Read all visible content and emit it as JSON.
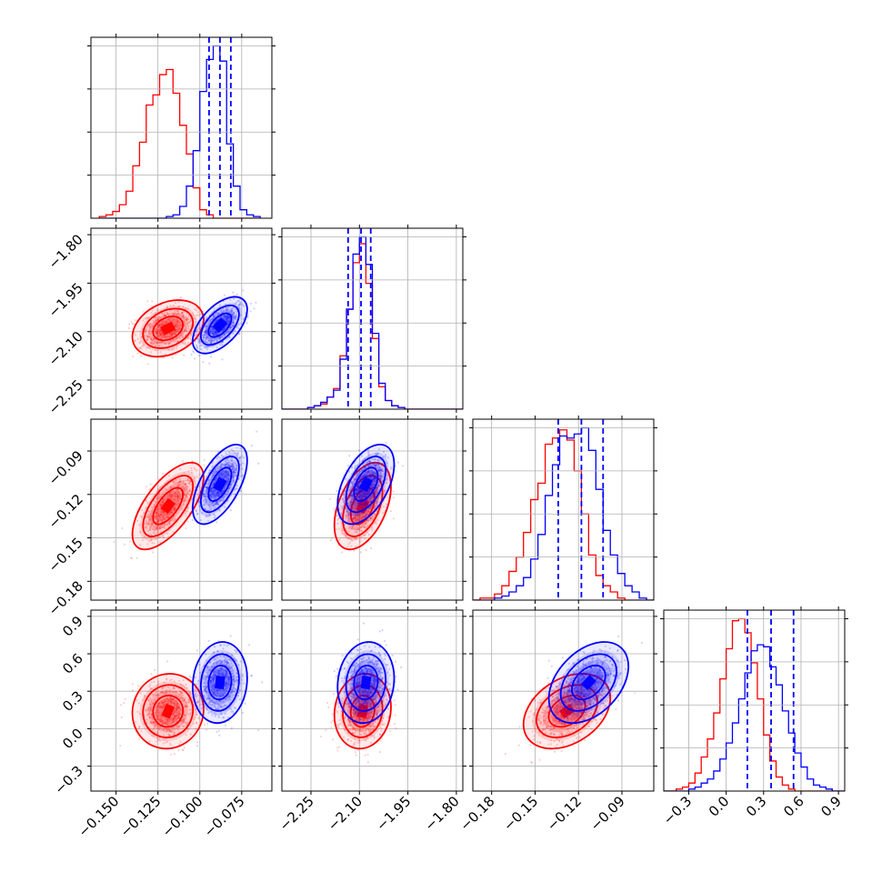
{
  "chart_data": {
    "type": "corner",
    "colors": {
      "series_a": "#ff0000",
      "series_b": "#0000ff",
      "quantile_lines": "#0000ff",
      "grid": "#b0b0b0"
    },
    "grid": true,
    "parameters": [
      {
        "range": [
          -0.165,
          -0.057
        ],
        "ticks": [
          -0.15,
          -0.125,
          -0.1,
          -0.075
        ],
        "tick_labels": [
          "−0.150",
          "−0.125",
          "−0.100",
          "−0.075"
        ]
      },
      {
        "range": [
          -2.34,
          -1.78
        ],
        "ticks": [
          -2.25,
          -2.1,
          -1.95,
          -1.8
        ],
        "tick_labels": [
          "−2.25",
          "−2.10",
          "−1.95",
          "−1.80"
        ]
      },
      {
        "range": [
          -0.193,
          -0.068
        ],
        "ticks": [
          -0.18,
          -0.15,
          -0.12,
          -0.09
        ],
        "tick_labels": [
          "−0.18",
          "−0.15",
          "−0.12",
          "−0.09"
        ]
      },
      {
        "range": [
          -0.5,
          0.95
        ],
        "ticks": [
          -0.3,
          0.0,
          0.3,
          0.6,
          0.9
        ],
        "tick_labels": [
          "−0.3",
          "0.0",
          "0.3",
          "0.6",
          "0.9"
        ]
      }
    ],
    "series": [
      {
        "means": [
          -0.119,
          -2.09,
          -0.128,
          0.14
        ],
        "stds": [
          0.0085,
          0.035,
          0.012,
          0.12
        ],
        "correlations": {
          "0-1": 0.3,
          "0-2": 0.65,
          "0-3": 0.05,
          "1-2": 0.45,
          "1-3": 0.1,
          "2-3": 0.35
        }
      },
      {
        "means": [
          -0.088,
          -2.08,
          -0.113,
          0.37
        ],
        "stds": [
          0.0065,
          0.035,
          0.011,
          0.13
        ],
        "correlations": {
          "0-1": 0.55,
          "0-2": 0.6,
          "0-3": 0.1,
          "1-2": 0.5,
          "1-3": 0.1,
          "2-3": 0.4
        }
      }
    ],
    "histograms": [
      {
        "bin_edges": [
          -0.16,
          -0.156,
          -0.152,
          -0.148,
          -0.144,
          -0.14,
          -0.136,
          -0.132,
          -0.128,
          -0.124,
          -0.12,
          -0.116,
          -0.112,
          -0.108,
          -0.104,
          -0.1,
          -0.096,
          -0.092,
          -0.088,
          -0.084,
          -0.08,
          -0.076,
          -0.072,
          -0.068,
          -0.064
        ],
        "series_a": [
          1,
          2,
          4,
          8,
          16,
          31,
          45,
          67,
          73,
          85,
          88,
          74,
          55,
          38,
          18,
          5,
          2,
          0,
          0,
          0,
          0,
          0,
          0,
          0
        ],
        "series_b": [
          0,
          0,
          0,
          0,
          0,
          0,
          0,
          0,
          0,
          0,
          1,
          2,
          7,
          19,
          40,
          75,
          94,
          102,
          93,
          44,
          19,
          5,
          2,
          1
        ],
        "quantiles_b": [
          -0.0945,
          -0.088,
          -0.0815
        ]
      },
      {
        "bin_edges": [
          -2.34,
          -2.32,
          -2.3,
          -2.28,
          -2.26,
          -2.24,
          -2.22,
          -2.2,
          -2.18,
          -2.16,
          -2.14,
          -2.12,
          -2.1,
          -2.08,
          -2.06,
          -2.04,
          -2.02,
          -2.0,
          -1.98,
          -1.96,
          -1.94,
          -1.92,
          -1.9,
          -1.88,
          -1.86,
          -1.84,
          -1.82,
          -1.8,
          -1.78
        ],
        "series_a": [
          0,
          0,
          0,
          0,
          1,
          2,
          3,
          7,
          12,
          31,
          58,
          85,
          96,
          73,
          41,
          13,
          5,
          2,
          1,
          0,
          0,
          0,
          0,
          0,
          0,
          0,
          0,
          0
        ],
        "series_b": [
          0,
          0,
          0,
          0,
          1,
          2,
          4,
          7,
          11,
          29,
          58,
          90,
          100,
          84,
          44,
          15,
          5,
          2,
          1,
          0,
          0,
          0,
          0,
          0,
          0,
          0,
          0,
          0
        ],
        "quantiles_b": [
          -2.135,
          -2.095,
          -2.065
        ]
      },
      {
        "bin_edges": [
          -0.193,
          -0.188,
          -0.183,
          -0.178,
          -0.173,
          -0.168,
          -0.163,
          -0.158,
          -0.153,
          -0.148,
          -0.143,
          -0.138,
          -0.133,
          -0.128,
          -0.123,
          -0.118,
          -0.113,
          -0.108,
          -0.103,
          -0.098,
          -0.093,
          -0.088,
          -0.083,
          -0.078,
          -0.073,
          -0.068
        ],
        "series_a": [
          0,
          1,
          1,
          3,
          7,
          14,
          21,
          33,
          49,
          57,
          76,
          79,
          83,
          78,
          63,
          42,
          22,
          12,
          7,
          4,
          1,
          0,
          0,
          0,
          0
        ],
        "series_b": [
          0,
          0,
          0,
          1,
          2,
          4,
          7,
          11,
          20,
          32,
          51,
          66,
          80,
          79,
          81,
          84,
          73,
          54,
          34,
          22,
          13,
          7,
          4,
          1,
          0
        ],
        "quantiles_b": [
          -0.134,
          -0.118,
          -0.103
        ]
      },
      {
        "bin_edges": [
          -0.5,
          -0.45,
          -0.4,
          -0.35,
          -0.3,
          -0.25,
          -0.2,
          -0.15,
          -0.1,
          -0.05,
          0.0,
          0.05,
          0.1,
          0.15,
          0.2,
          0.25,
          0.3,
          0.35,
          0.4,
          0.45,
          0.5,
          0.55,
          0.6,
          0.65,
          0.7,
          0.75,
          0.8,
          0.85,
          0.9,
          0.95
        ],
        "series_a": [
          0,
          0,
          1,
          2,
          4,
          9,
          17,
          26,
          39,
          56,
          71,
          85,
          86,
          79,
          64,
          46,
          28,
          15,
          7,
          3,
          1,
          0,
          0,
          0,
          0,
          0,
          0,
          0,
          0
        ],
        "series_b": [
          0,
          0,
          0,
          0,
          1,
          2,
          4,
          6,
          10,
          16,
          24,
          34,
          46,
          59,
          70,
          73,
          72,
          62,
          53,
          40,
          29,
          19,
          12,
          6,
          3,
          2,
          1,
          0,
          0
        ],
        "quantiles_b": [
          0.17,
          0.36,
          0.54
        ]
      }
    ]
  }
}
